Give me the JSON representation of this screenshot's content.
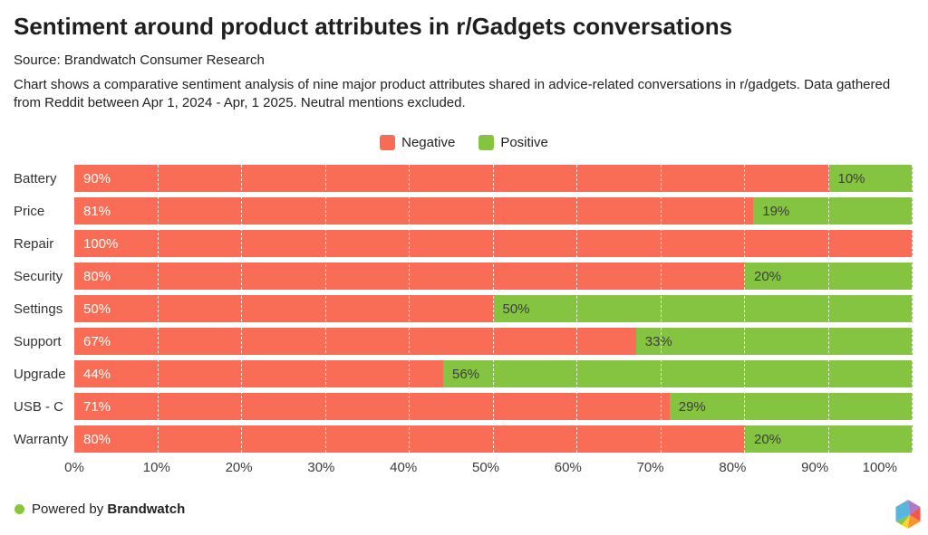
{
  "header": {
    "title": "Sentiment around product attributes in r/Gadgets conversations",
    "source": "Source: Brandwatch Consumer Research",
    "description": "Chart shows a comparative sentiment analysis of nine major product attributes shared in advice-related conversations in r/gadgets. Data gathered from Reddit between Apr 1, 2024 - Apr, 1 2025. Neutral mentions excluded."
  },
  "colors": {
    "negative": "#f96d57",
    "positive": "#85c441",
    "label_on_negative": "#ffffff",
    "label_on_positive": "#3d3d3d",
    "footer_dot": "#8cc63f"
  },
  "legend": {
    "items": [
      {
        "label": "Negative",
        "color": "#f96d57"
      },
      {
        "label": "Positive",
        "color": "#85c441"
      }
    ]
  },
  "chart_data": {
    "type": "bar",
    "orientation": "horizontal",
    "stacked": true,
    "title": "Sentiment around product attributes in r/Gadgets conversations",
    "categories": [
      "Battery",
      "Price",
      "Repair",
      "Security",
      "Settings",
      "Support",
      "Upgrade",
      "USB - C",
      "Warranty"
    ],
    "series": [
      {
        "name": "Negative",
        "color": "#f96d57",
        "values": [
          90,
          81,
          100,
          80,
          50,
          67,
          44,
          71,
          80
        ]
      },
      {
        "name": "Positive",
        "color": "#85c441",
        "values": [
          10,
          19,
          0,
          20,
          50,
          33,
          56,
          29,
          20
        ]
      }
    ],
    "value_suffix": "%",
    "xlim": [
      0,
      100
    ],
    "x_ticks": [
      "0%",
      "10%",
      "20%",
      "30%",
      "40%",
      "50%",
      "60%",
      "70%",
      "80%",
      "90%",
      "100%"
    ],
    "gridlines": {
      "style": "dashed",
      "color": "#ffffff",
      "interval_percent": 10
    },
    "legend_position": "top-center"
  },
  "footer": {
    "powered_by": "Powered by",
    "brand": "Brandwatch",
    "logo": "brandwatch-hexagon-logo"
  }
}
